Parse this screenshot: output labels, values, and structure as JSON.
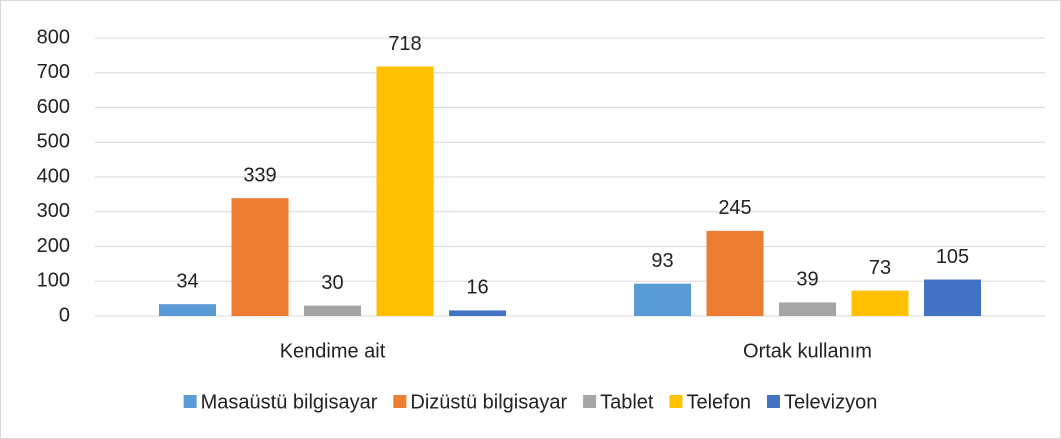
{
  "chart_data": {
    "type": "bar",
    "categories": [
      "Kendime ait",
      "Ortak kullanım"
    ],
    "series": [
      {
        "name": "Masaüstü bilgisayar",
        "color": "#5b9bd5",
        "values": [
          34,
          93
        ]
      },
      {
        "name": "Dizüstü bilgisayar",
        "color": "#ed7d31",
        "values": [
          339,
          245
        ]
      },
      {
        "name": "Tablet",
        "color": "#a5a5a5",
        "values": [
          30,
          39
        ]
      },
      {
        "name": "Telefon",
        "color": "#ffc000",
        "values": [
          718,
          73
        ]
      },
      {
        "name": "Televizyon",
        "color": "#4472c4",
        "values": [
          16,
          105
        ]
      }
    ],
    "ylim": [
      0,
      800
    ],
    "yticks": [
      0,
      100,
      200,
      300,
      400,
      500,
      600,
      700,
      800
    ],
    "grid": true,
    "legend": "bottom"
  }
}
